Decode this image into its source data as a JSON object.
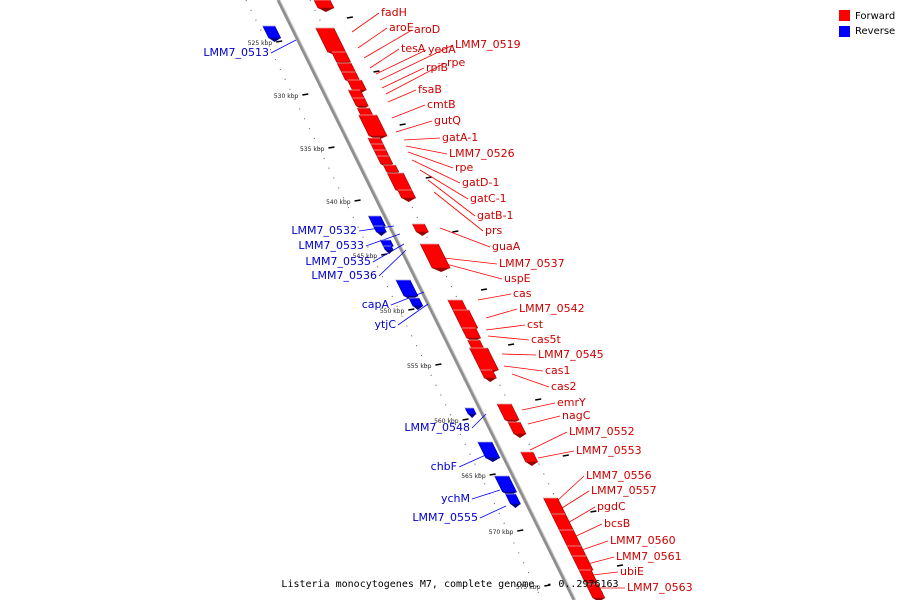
{
  "caption": "Listeria monocytogenes M7, complete genome. - 0..2976163",
  "legend": [
    {
      "label": "Forward",
      "color": "#ff0000"
    },
    {
      "label": "Reverse",
      "color": "#0000ff"
    }
  ],
  "colors": {
    "forward": "#ff0000",
    "forward_dark": "#9a0000",
    "reverse": "#0000ff",
    "reverse_dark": "#00008a",
    "axis": "#8a8a8a"
  },
  "ticks": [
    "525 kbp",
    "530 kbp",
    "535 kbp",
    "540 kbp",
    "545 kbp",
    "550 kbp",
    "555 kbp",
    "560 kbp",
    "565 kbp",
    "570 kbp",
    "575 kbp"
  ],
  "forward_labels": [
    "fadH",
    "aroE",
    "aroD",
    "tesA",
    "yedA",
    "LMM7_0519",
    "rpiB",
    "rpe",
    "fsaB",
    "cmtB",
    "gutQ",
    "gatA-1",
    "LMM7_0526",
    "rpe",
    "gatD-1",
    "gatC-1",
    "gatB-1",
    "prs",
    "guaA",
    "LMM7_0537",
    "uspE",
    "cas",
    "LMM7_0542",
    "cst",
    "cas5t",
    "LMM7_0545",
    "cas1",
    "cas2",
    "emrY",
    "nagC",
    "LMM7_0552",
    "LMM7_0553",
    "LMM7_0556",
    "LMM7_0557",
    "pgdC",
    "bcsB",
    "LMM7_0560",
    "LMM7_0561",
    "ubiE",
    "LMM7_0563"
  ],
  "reverse_labels": [
    "LMM7_0513",
    "LMM7_0532",
    "LMM7_0533",
    "LMM7_0535",
    "LMM7_0536",
    "capA",
    "ytjC",
    "LMM7_0548",
    "chbF",
    "ychM",
    "LMM7_0555"
  ]
}
